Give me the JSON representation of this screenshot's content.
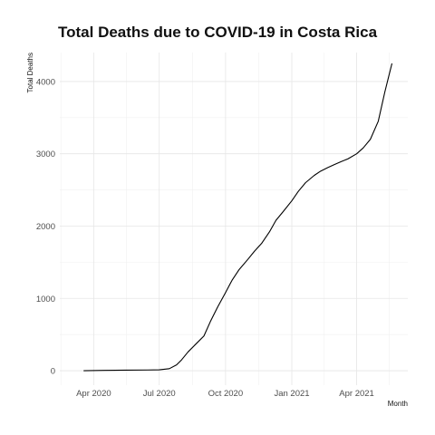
{
  "chart_data": {
    "type": "line",
    "title": "Total Deaths due to COVID-19 in Costa Rica",
    "xlabel": "Month",
    "ylabel": "Total Deaths",
    "x_ticks": [
      {
        "date": "2020-04-01",
        "label": "Apr 2020"
      },
      {
        "date": "2020-07-01",
        "label": "Jul 2020"
      },
      {
        "date": "2020-10-01",
        "label": "Oct 2020"
      },
      {
        "date": "2021-01-01",
        "label": "Jan 2021"
      },
      {
        "date": "2021-04-01",
        "label": "Apr 2021"
      }
    ],
    "y_ticks": [
      0,
      1000,
      2000,
      3000,
      4000
    ],
    "xlim": [
      "2020-02-14",
      "2021-06-11"
    ],
    "ylim": [
      -200,
      4400
    ],
    "grid": true,
    "line_color": "#000000",
    "series": [
      {
        "x": [
          "2020-03-18",
          "2020-04-15",
          "2020-05-15",
          "2020-06-15",
          "2020-07-01",
          "2020-07-15",
          "2020-07-25",
          "2020-08-01",
          "2020-08-10",
          "2020-08-20",
          "2020-09-01",
          "2020-09-10",
          "2020-09-20",
          "2020-10-01",
          "2020-10-10",
          "2020-10-20",
          "2020-11-01",
          "2020-11-10",
          "2020-11-20",
          "2020-12-01",
          "2020-12-10",
          "2020-12-20",
          "2021-01-01",
          "2021-01-10",
          "2021-01-20",
          "2021-02-01",
          "2021-02-10",
          "2021-02-20",
          "2021-03-01",
          "2021-03-10",
          "2021-03-20",
          "2021-04-01",
          "2021-04-10",
          "2021-04-20",
          "2021-05-01",
          "2021-05-10",
          "2021-05-15",
          "2021-05-20"
        ],
        "y": [
          0,
          4,
          8,
          10,
          12,
          28,
          80,
          150,
          260,
          360,
          480,
          680,
          880,
          1080,
          1250,
          1400,
          1540,
          1650,
          1760,
          1920,
          2080,
          2200,
          2350,
          2480,
          2600,
          2700,
          2760,
          2810,
          2850,
          2890,
          2930,
          3000,
          3080,
          3200,
          3450,
          3850,
          4050,
          4250
        ]
      }
    ]
  }
}
